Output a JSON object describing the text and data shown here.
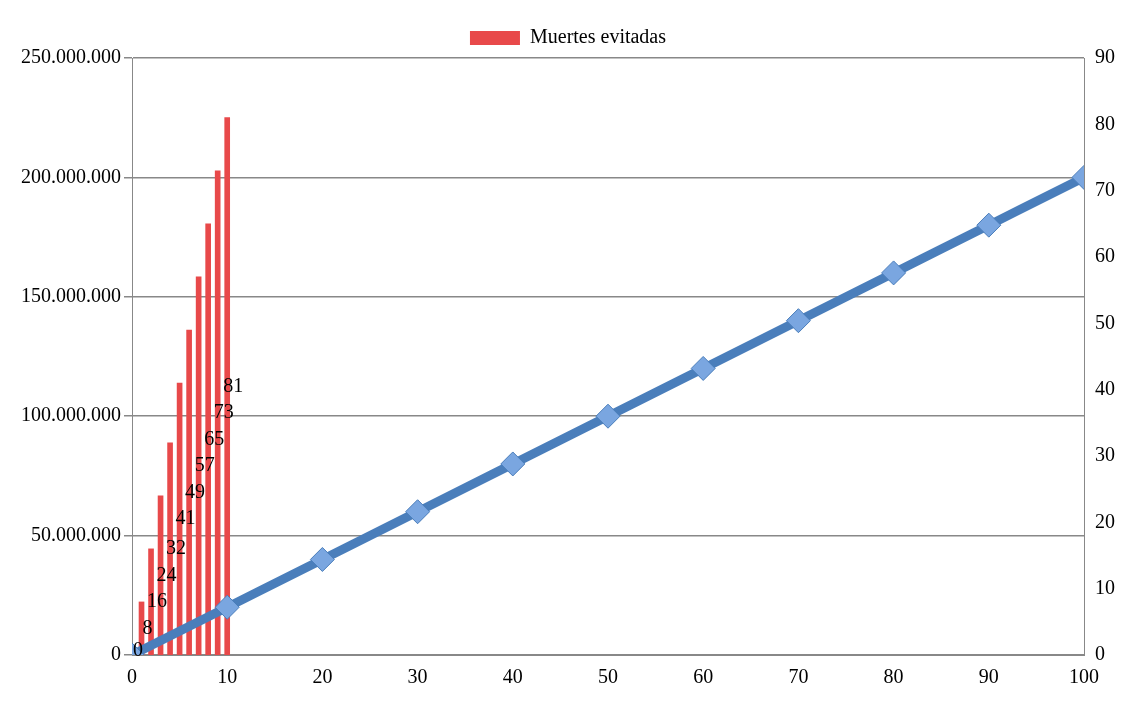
{
  "chart_data": {
    "type": "bar",
    "legend": "top",
    "series": [
      {
        "name": "Muertes evitadas",
        "axis": "y2",
        "color": "#e8494a",
        "x": [
          0,
          1,
          2,
          3,
          4,
          5,
          6,
          7,
          8,
          9,
          10
        ],
        "values": [
          0,
          8,
          16,
          24,
          32,
          41,
          49,
          57,
          65,
          73,
          81
        ],
        "value_labels": [
          "0",
          "8",
          "16",
          "24",
          "32",
          "41",
          "49",
          "57",
          "65",
          "73",
          "81"
        ]
      },
      {
        "type": "line",
        "axis": "y2",
        "color": "#4a7ebb",
        "marker": "diamond",
        "x": [
          0,
          10,
          20,
          30,
          40,
          50,
          60,
          70,
          80,
          90,
          100
        ],
        "values": [
          0,
          7.2,
          14.4,
          21.6,
          28.8,
          36,
          43.2,
          50.4,
          57.6,
          64.8,
          72
        ]
      }
    ],
    "xlim": [
      0,
      100
    ],
    "xticks": [
      0,
      10,
      20,
      30,
      40,
      50,
      60,
      70,
      80,
      90,
      100
    ],
    "ylim": [
      0,
      250000000
    ],
    "yticks": [
      {
        "value": 0,
        "label": "0"
      },
      {
        "value": 50000000,
        "label": "50.000.000"
      },
      {
        "value": 100000000,
        "label": "100.000.000"
      },
      {
        "value": 150000000,
        "label": "150.000.000"
      },
      {
        "value": 200000000,
        "label": "200.000.000"
      },
      {
        "value": 250000000,
        "label": "250.000.000"
      }
    ],
    "y2lim": [
      0,
      90
    ],
    "y2ticks": [
      0,
      10,
      20,
      30,
      40,
      50,
      60,
      70,
      80,
      90
    ],
    "grid": "y"
  }
}
